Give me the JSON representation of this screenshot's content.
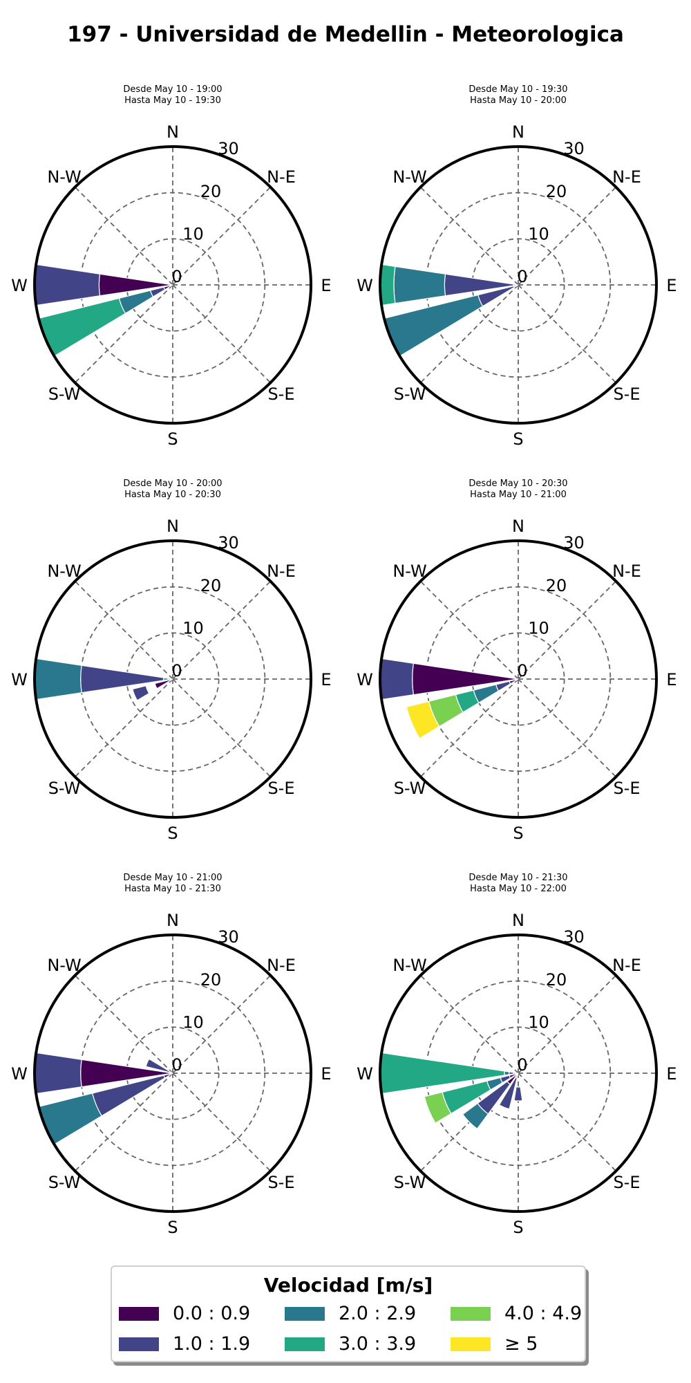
{
  "title": "197 - Universidad de Medellin - Meteorologica",
  "chart_data": [
    {
      "type": "windrose",
      "subtitle_line1": "Desde May 10 - 19:00",
      "subtitle_line2": "Hasta May 10 - 19:30",
      "r_ticks": [
        "0",
        "10",
        "20",
        "30"
      ],
      "rlim": [
        0,
        30
      ],
      "directions": [
        "N",
        "N-E",
        "E",
        "S-E",
        "S",
        "S-W",
        "W",
        "N-W"
      ],
      "sectors": [
        {
          "dir_deg": 270,
          "bins": [
            {
              "bin": 0,
              "from": 0,
              "to": 16
            },
            {
              "bin": 1,
              "from": 16,
              "to": 30
            }
          ]
        },
        {
          "dir_deg": 247.5,
          "bins": [
            {
              "bin": 0,
              "from": 0,
              "to": 2
            },
            {
              "bin": 1,
              "from": 2,
              "to": 5
            },
            {
              "bin": 2,
              "from": 5,
              "to": 12
            },
            {
              "bin": 3,
              "from": 12,
              "to": 30
            }
          ]
        }
      ]
    },
    {
      "type": "windrose",
      "subtitle_line1": "Desde May 10 - 19:30",
      "subtitle_line2": "Hasta May 10 - 20:00",
      "r_ticks": [
        "0",
        "10",
        "20",
        "30"
      ],
      "rlim": [
        0,
        30
      ],
      "directions": [
        "N",
        "N-E",
        "E",
        "S-E",
        "S",
        "S-W",
        "W",
        "N-W"
      ],
      "sectors": [
        {
          "dir_deg": 270,
          "bins": [
            {
              "bin": 0,
              "from": 0,
              "to": 1
            },
            {
              "bin": 1,
              "from": 1,
              "to": 16
            },
            {
              "bin": 2,
              "from": 16,
              "to": 27
            },
            {
              "bin": 3,
              "from": 27,
              "to": 30
            }
          ]
        },
        {
          "dir_deg": 247.5,
          "bins": [
            {
              "bin": 0,
              "from": 0,
              "to": 1
            },
            {
              "bin": 1,
              "from": 1,
              "to": 9
            },
            {
              "bin": 2,
              "from": 9,
              "to": 30
            }
          ]
        }
      ]
    },
    {
      "type": "windrose",
      "subtitle_line1": "Desde May 10 - 20:00",
      "subtitle_line2": "Hasta May 10 - 20:30",
      "r_ticks": [
        "0",
        "10",
        "20",
        "30"
      ],
      "rlim": [
        0,
        30
      ],
      "directions": [
        "N",
        "N-E",
        "E",
        "S-E",
        "S",
        "S-W",
        "W",
        "N-W"
      ],
      "sectors": [
        {
          "dir_deg": 270,
          "bins": [
            {
              "bin": 0,
              "from": 0,
              "to": 1
            },
            {
              "bin": 3,
              "from": 1,
              "to": 2
            },
            {
              "bin": 1,
              "from": 2,
              "to": 20
            },
            {
              "bin": 2,
              "from": 20,
              "to": 30
            }
          ]
        },
        {
          "dir_deg": 247.5,
          "bins": [
            {
              "bin": 0,
              "from": 0,
              "to": 4
            },
            {
              "bin": 1,
              "from": 6,
              "to": 9
            }
          ]
        }
      ]
    },
    {
      "type": "windrose",
      "subtitle_line1": "Desde May 10 - 20:30",
      "subtitle_line2": "Hasta May 10 - 21:00",
      "r_ticks": [
        "0",
        "10",
        "20",
        "30"
      ],
      "rlim": [
        0,
        30
      ],
      "directions": [
        "N",
        "N-E",
        "E",
        "S-E",
        "S",
        "S-W",
        "W",
        "N-W"
      ],
      "sectors": [
        {
          "dir_deg": 270,
          "bins": [
            {
              "bin": 0,
              "from": 0,
              "to": 23
            },
            {
              "bin": 1,
              "from": 23,
              "to": 30
            }
          ]
        },
        {
          "dir_deg": 247.5,
          "bins": [
            {
              "bin": 0,
              "from": 0,
              "to": 2
            },
            {
              "bin": 1,
              "from": 2,
              "to": 5
            },
            {
              "bin": 2,
              "from": 5,
              "to": 10
            },
            {
              "bin": 3,
              "from": 10,
              "to": 14
            },
            {
              "bin": 4,
              "from": 14,
              "to": 20
            },
            {
              "bin": 5,
              "from": 20,
              "to": 25
            }
          ]
        }
      ]
    },
    {
      "type": "windrose",
      "subtitle_line1": "Desde May 10 - 21:00",
      "subtitle_line2": "Hasta May 10 - 21:30",
      "r_ticks": [
        "0",
        "10",
        "20",
        "30"
      ],
      "rlim": [
        0,
        30
      ],
      "directions": [
        "N",
        "N-E",
        "E",
        "S-E",
        "S",
        "S-W",
        "W",
        "N-W"
      ],
      "sectors": [
        {
          "dir_deg": 270,
          "bins": [
            {
              "bin": 0,
              "from": 0,
              "to": 20
            },
            {
              "bin": 1,
              "from": 20,
              "to": 30
            }
          ]
        },
        {
          "dir_deg": 247.5,
          "bins": [
            {
              "bin": 0,
              "from": 0,
              "to": 2
            },
            {
              "bin": 1,
              "from": 2,
              "to": 18
            },
            {
              "bin": 2,
              "from": 18,
              "to": 30
            }
          ]
        },
        {
          "dir_deg": 292.5,
          "bins": [
            {
              "bin": 1,
              "from": 0,
              "to": 6
            }
          ]
        }
      ]
    },
    {
      "type": "windrose",
      "subtitle_line1": "Desde May 10 - 21:30",
      "subtitle_line2": "Hasta May 10 - 22:00",
      "r_ticks": [
        "0",
        "10",
        "20",
        "30"
      ],
      "rlim": [
        0,
        30
      ],
      "directions": [
        "N",
        "N-E",
        "E",
        "S-E",
        "S",
        "S-W",
        "W",
        "N-W"
      ],
      "sectors": [
        {
          "dir_deg": 270,
          "bins": [
            {
              "bin": 0,
              "from": 0,
              "to": 1
            },
            {
              "bin": 1,
              "from": 1,
              "to": 2
            },
            {
              "bin": 2,
              "from": 2,
              "to": 3
            },
            {
              "bin": 3,
              "from": 3,
              "to": 30
            }
          ]
        },
        {
          "dir_deg": 247.5,
          "bins": [
            {
              "bin": 0,
              "from": 0,
              "to": 2
            },
            {
              "bin": 1,
              "from": 2,
              "to": 4
            },
            {
              "bin": 2,
              "from": 4,
              "to": 7
            },
            {
              "bin": 3,
              "from": 7,
              "to": 17
            },
            {
              "bin": 4,
              "from": 17,
              "to": 21
            }
          ]
        },
        {
          "dir_deg": 225,
          "bins": [
            {
              "bin": 0,
              "from": 0,
              "to": 3
            },
            {
              "bin": 1,
              "from": 3,
              "to": 11
            },
            {
              "bin": 2,
              "from": 11,
              "to": 15
            }
          ]
        },
        {
          "dir_deg": 202.5,
          "bins": [
            {
              "bin": 0,
              "from": 0,
              "to": 1
            },
            {
              "bin": 1,
              "from": 1,
              "to": 8
            }
          ]
        },
        {
          "dir_deg": 180,
          "bins": [
            {
              "bin": 1,
              "from": 3,
              "to": 6
            }
          ]
        }
      ]
    }
  ],
  "legend": {
    "title": "Velocidad [m/s]",
    "items": [
      {
        "label": "0.0 : 0.9",
        "color": "#440154"
      },
      {
        "label": "1.0 : 1.9",
        "color": "#414487"
      },
      {
        "label": "2.0 : 2.9",
        "color": "#2a788e"
      },
      {
        "label": "3.0 : 3.9",
        "color": "#22a884"
      },
      {
        "label": "4.0 : 4.9",
        "color": "#7ad151"
      },
      {
        "label": "≥  5",
        "color": "#fde725"
      }
    ]
  }
}
